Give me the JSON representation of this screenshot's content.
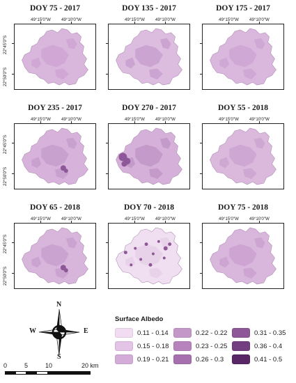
{
  "map": {
    "panels": [
      {
        "title": "DOY 75 - 2017",
        "lon_labels": [
          "49°15'0\"W",
          "49°10'0\"W"
        ],
        "lat_labels": [
          "22°45'0\"S",
          "22°50'0\"S"
        ],
        "base_color": "#d9b6dc",
        "patch_color": "#cfa6d3",
        "dark_spots": []
      },
      {
        "title": "DOY 135 - 2017",
        "lon_labels": [
          "49°15'0\"W",
          "49°10'0\"W"
        ],
        "lat_labels": [],
        "base_color": "#dcbcdf",
        "patch_color": "#c9a0cf",
        "dark_spots": []
      },
      {
        "title": "DOY 175 - 2017",
        "lon_labels": [
          "49°15'0\"W",
          "49°10'0\"W"
        ],
        "lat_labels": [],
        "base_color": "#dab8de",
        "patch_color": "#cea5d3",
        "dark_spots": []
      },
      {
        "title": "DOY 235 - 2017",
        "lon_labels": [
          "49°15'0\"W",
          "49°10'0\"W"
        ],
        "lat_labels": [
          "22°45'0\"S",
          "22°50'0\"S"
        ],
        "base_color": "#d7b2da",
        "patch_color": "#c79dcc",
        "dark_spots": [
          "sm"
        ]
      },
      {
        "title": "DOY 270 - 2017",
        "lon_labels": [
          "49°15'0\"W",
          "49°10'0\"W"
        ],
        "lat_labels": [],
        "base_color": "#d5b0d9",
        "patch_color": "#c197c8",
        "dark_spots": [
          "west"
        ]
      },
      {
        "title": "DOY 55 - 2018",
        "lon_labels": [
          "49°15'0\"W",
          "49°10'0\"W"
        ],
        "lat_labels": [],
        "base_color": "#dab9dd",
        "patch_color": "#cca3d1",
        "dark_spots": []
      },
      {
        "title": "DOY 65 - 2018",
        "lon_labels": [
          "49°15'0\"W",
          "49°10'0\"W"
        ],
        "lat_labels": [
          "22°45'0\"S",
          "22°50'0\"S"
        ],
        "base_color": "#d8b5db",
        "patch_color": "#c9a0ce",
        "dark_spots": [
          "sm"
        ]
      },
      {
        "title": "DOY 70 - 2018",
        "lon_labels": [
          "49°15'0\"W",
          "49°10'0\"W"
        ],
        "lat_labels": [],
        "base_color": "#f0dff1",
        "patch_color": "#e6d0e8",
        "dark_spots": [
          "scatter"
        ]
      },
      {
        "title": "DOY 75 - 2018",
        "lon_labels": [
          "49°15'0\"W",
          "49°10'0\"W"
        ],
        "lat_labels": [],
        "base_color": "#d9b6dc",
        "patch_color": "#cba2d0",
        "dark_spots": []
      }
    ]
  },
  "compass": {
    "n": "N",
    "s": "S",
    "e": "E",
    "w": "W"
  },
  "scalebar": {
    "labels": [
      "0",
      "5",
      "10",
      "20 km"
    ]
  },
  "legend": {
    "title": "Surface Albedo",
    "items": [
      {
        "label": "0.11 - 0.14",
        "color": "#f1dcf1"
      },
      {
        "label": "0.15 - 0.18",
        "color": "#e3c3e6"
      },
      {
        "label": "0.19 - 0.21",
        "color": "#d4acd8"
      },
      {
        "label": "0.22 - 0.22",
        "color": "#c497c9"
      },
      {
        "label": "0.23 - 0.25",
        "color": "#b683bc"
      },
      {
        "label": "0.26 - 0.3",
        "color": "#a66fae"
      },
      {
        "label": "0.31 - 0.35",
        "color": "#8e5797"
      },
      {
        "label": "0.36 - 0.4",
        "color": "#743f80"
      },
      {
        "label": "0.41 - 0.5",
        "color": "#5a2766"
      }
    ]
  }
}
